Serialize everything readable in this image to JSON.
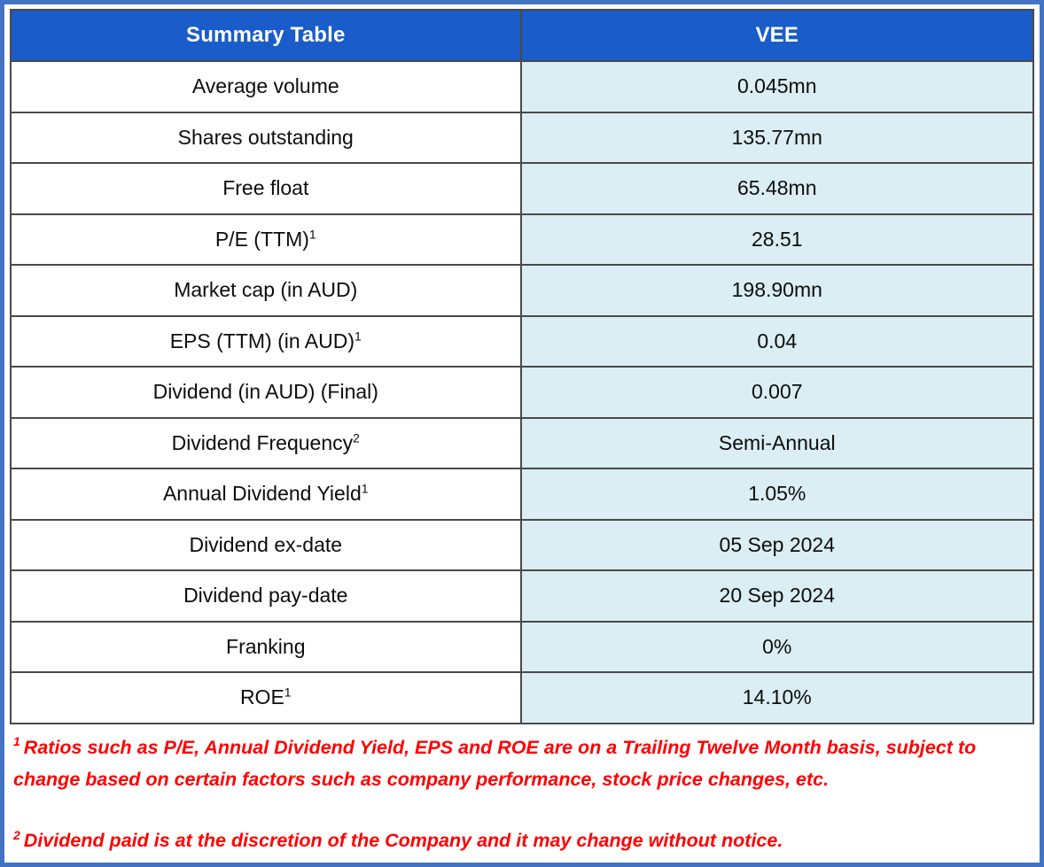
{
  "table": {
    "header": {
      "label_col": "Summary Table",
      "value_col": "VEE"
    },
    "rows": [
      {
        "label": "Average volume",
        "sup": "",
        "value": "0.045mn"
      },
      {
        "label": "Shares outstanding",
        "sup": "",
        "value": "135.77mn"
      },
      {
        "label": "Free float",
        "sup": "",
        "value": "65.48mn"
      },
      {
        "label": "P/E (TTM)",
        "sup": "1",
        "value": "28.51"
      },
      {
        "label": "Market cap (in AUD)",
        "sup": "",
        "value": "198.90mn"
      },
      {
        "label": "EPS (TTM) (in AUD)",
        "sup": "1",
        "value": "0.04"
      },
      {
        "label": "Dividend (in AUD) (Final)",
        "sup": "",
        "value": "0.007"
      },
      {
        "label": "Dividend Frequency",
        "sup": "2",
        "value": "Semi-Annual"
      },
      {
        "label": "Annual Dividend Yield",
        "sup": "1",
        "value": "1.05%"
      },
      {
        "label": "Dividend ex-date",
        "sup": "",
        "value": "05 Sep 2024"
      },
      {
        "label": "Dividend pay-date",
        "sup": "",
        "value": "20 Sep 2024"
      },
      {
        "label": "Franking",
        "sup": "",
        "value": "0%"
      },
      {
        "label": "ROE",
        "sup": "1",
        "value": "14.10%"
      }
    ]
  },
  "footnotes": [
    {
      "sup": "1",
      "text": "Ratios such as P/E, Annual Dividend Yield, EPS and ROE are on a Trailing Twelve Month basis, subject to change based on certain factors such as company performance, stock price changes, etc."
    },
    {
      "sup": "2",
      "text": "Dividend paid is at the discretion of the Company and it may change without notice."
    }
  ],
  "colors": {
    "header_bg": "#1a5cc9",
    "header_text": "#ffffff",
    "value_bg": "#daeef3",
    "label_bg": "#ffffff",
    "grid": "#4a4a4a",
    "outer_border": "#4472c4",
    "footnote_text": "#ff0000",
    "body_text": "#0d0d0d"
  }
}
